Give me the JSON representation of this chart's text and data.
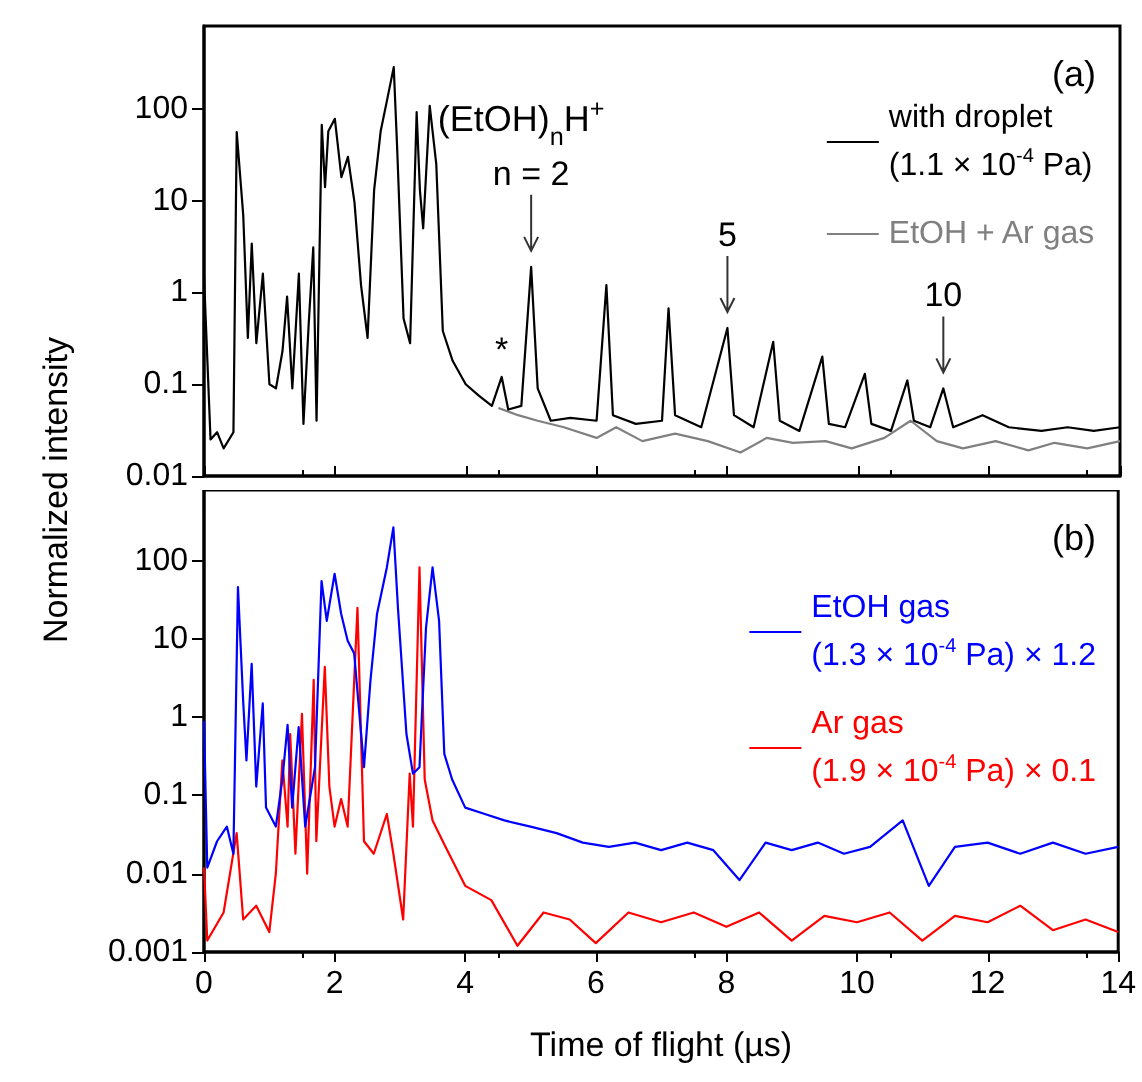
{
  "chart_data": [
    {
      "type": "line",
      "ylabel": "Normalized intensity",
      "log": "y",
      "grid": false,
      "legend": "top right",
      "marker": "none",
      "line_style": "solid",
      "tick_labels": "y",
      "xlim": [
        0,
        14
      ],
      "xticks": [
        0,
        2,
        4,
        6,
        8,
        10,
        12,
        14
      ],
      "ylim": [
        0.01,
        800
      ],
      "yticks": [
        0.01,
        0.1,
        1,
        10,
        100
      ],
      "annotations": [
        "(a)",
        "(EtOH)$_{n}$H$^{+}$",
        {
          "text": "*",
          "x": 4.55,
          "y": 0.12
        },
        {
          "text": "n = 2",
          "x": 5,
          "y": 1.9
        },
        {
          "text": "5",
          "x": 8,
          "y": 0.41
        },
        {
          "text": "10",
          "x": 11.3,
          "y": 0.09
        }
      ],
      "series": [
        {
          "name": "with droplet\n(1.1 × 10$^{-4}$ Pa)",
          "color": "#000000",
          "x": [
            0,
            0.1,
            0.2,
            0.3,
            0.45,
            0.5,
            0.6,
            0.67,
            0.73,
            0.8,
            0.9,
            1.0,
            1.1,
            1.2,
            1.27,
            1.35,
            1.45,
            1.52,
            1.6,
            1.67,
            1.72,
            1.8,
            1.85,
            1.9,
            2.0,
            2.1,
            2.2,
            2.3,
            2.4,
            2.5,
            2.6,
            2.7,
            2.8,
            2.9,
            2.95,
            3.05,
            3.15,
            3.25,
            3.3,
            3.35,
            3.45,
            3.55,
            3.65,
            3.8,
            4.0,
            4.2,
            4.4,
            4.55,
            4.65,
            4.85,
            5.0,
            5.1,
            5.3,
            5.6,
            6.0,
            6.15,
            6.25,
            6.6,
            7.0,
            7.1,
            7.2,
            7.6,
            8.0,
            8.1,
            8.4,
            8.7,
            8.8,
            9.1,
            9.45,
            9.55,
            9.8,
            10.1,
            10.2,
            10.5,
            10.75,
            10.85,
            11.1,
            11.3,
            11.45,
            11.9,
            12.3,
            12.8,
            13.2,
            13.6,
            14.0
          ],
          "values": [
            1.5,
            0.025,
            0.03,
            0.02,
            0.03,
            56,
            6.9,
            0.32,
            3.4,
            0.28,
            1.6,
            0.1,
            0.09,
            0.23,
            0.9,
            0.09,
            1.6,
            0.037,
            0.45,
            3.1,
            0.04,
            67,
            14,
            57,
            78,
            18,
            30,
            9.6,
            1.2,
            0.32,
            13,
            57,
            127,
            285,
            41,
            0.52,
            0.28,
            92,
            13,
            5,
            108,
            25,
            0.38,
            0.18,
            0.1,
            0.075,
            0.058,
            0.12,
            0.053,
            0.058,
            1.9,
            0.09,
            0.04,
            0.043,
            0.04,
            1.2,
            0.046,
            0.037,
            0.04,
            0.67,
            0.046,
            0.034,
            0.41,
            0.046,
            0.034,
            0.29,
            0.04,
            0.031,
            0.2,
            0.037,
            0.034,
            0.13,
            0.037,
            0.031,
            0.11,
            0.04,
            0.034,
            0.09,
            0.034,
            0.046,
            0.034,
            0.031,
            0.034,
            0.031,
            0.034
          ]
        },
        {
          "name": "EtOH + Ar gas",
          "color": "#808080",
          "x": [
            4.5,
            4.8,
            5.1,
            5.5,
            6.0,
            6.3,
            6.7,
            7.2,
            7.7,
            8.2,
            8.6,
            9.0,
            9.5,
            9.9,
            10.4,
            10.8,
            11.2,
            11.6,
            12.1,
            12.6,
            13.0,
            13.5,
            14.0
          ],
          "values": [
            0.055,
            0.046,
            0.04,
            0.034,
            0.026,
            0.034,
            0.024,
            0.029,
            0.024,
            0.018,
            0.026,
            0.023,
            0.024,
            0.02,
            0.026,
            0.04,
            0.024,
            0.02,
            0.024,
            0.019,
            0.023,
            0.02,
            0.024
          ]
        }
      ]
    },
    {
      "type": "line",
      "xlabel": "Time of flight (µs)",
      "log": "y",
      "grid": false,
      "legend": "top right",
      "marker": "none",
      "line_style": "solid",
      "xlim": [
        0,
        14
      ],
      "xticks": [
        0,
        2,
        4,
        6,
        8,
        10,
        12,
        14
      ],
      "ylim": [
        0.001,
        800
      ],
      "yticks": [
        0.001,
        0.01,
        0.1,
        1,
        10,
        100
      ],
      "annotations": [
        "(b)"
      ],
      "series": [
        {
          "name": "EtOH gas\n(1.3 × 10$^{-4}$ Pa) × 1.2",
          "color": "#0000ff",
          "x": [
            0,
            0.05,
            0.2,
            0.35,
            0.45,
            0.52,
            0.6,
            0.65,
            0.73,
            0.8,
            0.9,
            0.95,
            1.1,
            1.2,
            1.28,
            1.35,
            1.45,
            1.55,
            1.7,
            1.8,
            1.88,
            2.0,
            2.1,
            2.2,
            2.3,
            2.45,
            2.55,
            2.65,
            2.8,
            2.9,
            2.97,
            3.1,
            3.2,
            3.3,
            3.4,
            3.5,
            3.6,
            3.68,
            3.8,
            4.0,
            4.3,
            4.6,
            5.0,
            5.4,
            5.8,
            6.2,
            6.6,
            7.0,
            7.4,
            7.8,
            8.2,
            8.6,
            9.0,
            9.4,
            9.8,
            10.2,
            10.7,
            11.1,
            11.5,
            12.0,
            12.5,
            13.0,
            13.5,
            14.0
          ],
          "values": [
            0.9,
            0.012,
            0.026,
            0.04,
            0.018,
            46,
            1.6,
            0.28,
            4.8,
            0.13,
            1.5,
            0.07,
            0.04,
            0.16,
            0.8,
            0.07,
            0.75,
            0.04,
            0.23,
            55,
            17,
            68,
            21,
            9.5,
            6.5,
            0.23,
            3,
            21,
            82,
            266,
            25,
            0.61,
            0.19,
            0.23,
            14,
            82,
            17,
            0.34,
            0.16,
            0.07,
            0.058,
            0.048,
            0.04,
            0.033,
            0.025,
            0.022,
            0.025,
            0.02,
            0.025,
            0.02,
            0.0083,
            0.025,
            0.02,
            0.025,
            0.018,
            0.022,
            0.048,
            0.007,
            0.022,
            0.025,
            0.018,
            0.025,
            0.018,
            0.022
          ]
        },
        {
          "name": "Ar gas\n(1.9 × 10$^{-4}$ Pa) × 0.1",
          "color": "#ff0000",
          "x": [
            0,
            0.05,
            0.3,
            0.5,
            0.6,
            0.8,
            1.0,
            1.1,
            1.2,
            1.28,
            1.32,
            1.4,
            1.5,
            1.58,
            1.68,
            1.72,
            1.85,
            1.92,
            2.0,
            2.1,
            2.2,
            2.35,
            2.45,
            2.6,
            2.8,
            2.9,
            3.05,
            3.15,
            3.2,
            3.3,
            3.38,
            3.5,
            3.7,
            4.0,
            4.4,
            4.8,
            5.2,
            5.6,
            6.0,
            6.5,
            7.0,
            7.5,
            8.0,
            8.5,
            9.0,
            9.5,
            10.0,
            10.5,
            11.0,
            11.5,
            12.0,
            12.5,
            13.0,
            13.5,
            14.0
          ],
          "values": [
            0.012,
            0.0014,
            0.0032,
            0.033,
            0.0026,
            0.0039,
            0.0018,
            0.01,
            0.28,
            0.04,
            0.61,
            0.018,
            1.1,
            0.01,
            3,
            0.026,
            4.4,
            0.13,
            0.04,
            0.09,
            0.04,
            25,
            0.026,
            0.018,
            0.058,
            0.018,
            0.0026,
            0.19,
            0.04,
            82,
            0.16,
            0.048,
            0.022,
            0.007,
            0.0046,
            0.0012,
            0.0032,
            0.0026,
            0.0013,
            0.0032,
            0.0024,
            0.0032,
            0.0021,
            0.0032,
            0.0014,
            0.0029,
            0.0024,
            0.0032,
            0.0014,
            0.0029,
            0.0024,
            0.0039,
            0.0019,
            0.0026,
            0.0018
          ]
        }
      ]
    }
  ]
}
